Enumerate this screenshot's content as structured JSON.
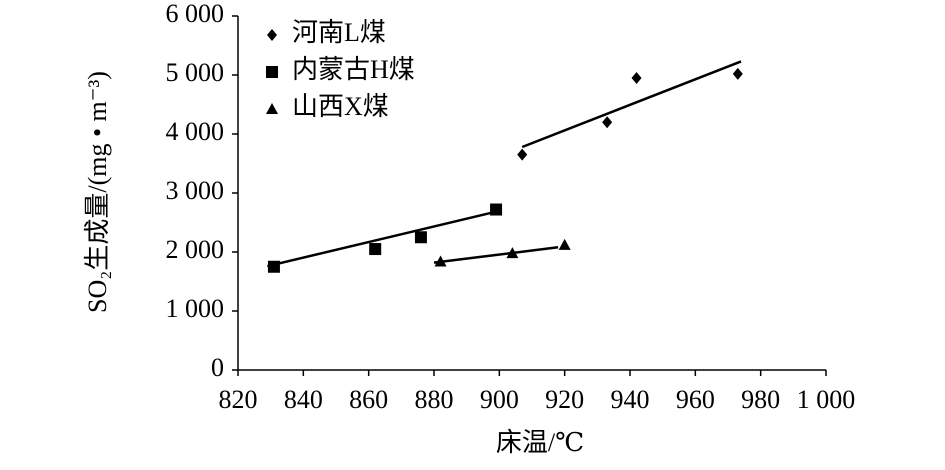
{
  "chart_data": {
    "type": "scatter",
    "x_label": "床温/℃",
    "y_label": "SO₂生成量/(mg • m⁻³)",
    "xlim": [
      820,
      1000
    ],
    "xticks": [
      820,
      840,
      860,
      880,
      900,
      920,
      940,
      960,
      980,
      {
        "value": 1000,
        "label": "1 000"
      }
    ],
    "ylim": [
      0,
      6000
    ],
    "yticks": [
      0,
      {
        "value": 1000,
        "label": "1 000"
      },
      {
        "value": 2000,
        "label": "2 000"
      },
      {
        "value": 3000,
        "label": "3 000"
      },
      {
        "value": 4000,
        "label": "4 000"
      },
      {
        "value": 5000,
        "label": "5 000"
      },
      {
        "value": 6000,
        "label": "6 000"
      }
    ],
    "grid": false,
    "legend": "upper left",
    "series": [
      {
        "name": "河南L煤",
        "color": "#000000",
        "marker": "diamond",
        "x": [
          907,
          933,
          942,
          973
        ],
        "values": [
          3650,
          4200,
          4950,
          5020
        ],
        "trend": {
          "x": [
            907,
            974
          ],
          "values": [
            3780,
            5230
          ]
        }
      },
      {
        "name": "内蒙古H煤",
        "color": "#000000",
        "marker": "square",
        "x": [
          831,
          862,
          876,
          899
        ],
        "values": [
          1750,
          2050,
          2250,
          2720
        ],
        "trend": {
          "x": [
            829,
            898
          ],
          "values": [
            1760,
            2670
          ]
        }
      },
      {
        "name": "山西X煤",
        "color": "#000000",
        "marker": "triangle",
        "x": [
          882,
          904,
          920
        ],
        "values": [
          1840,
          1980,
          2120
        ],
        "trend": {
          "x": [
            880,
            918
          ],
          "values": [
            1820,
            2080
          ]
        }
      }
    ]
  }
}
